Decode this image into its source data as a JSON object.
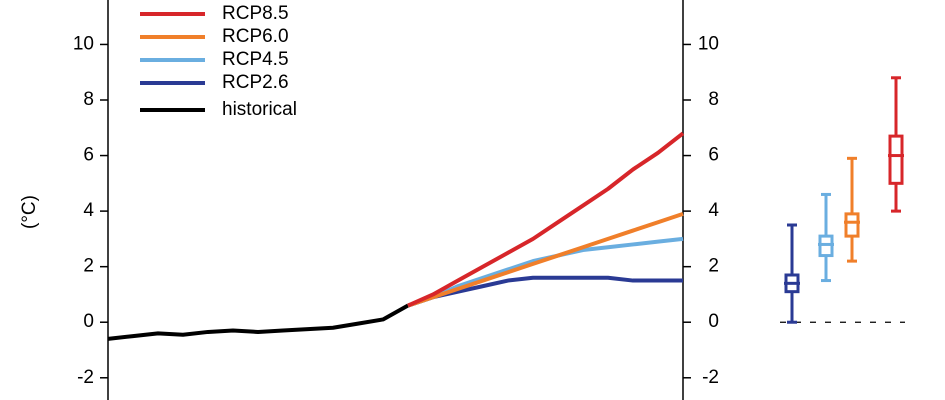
{
  "chart_data": [
    {
      "type": "line",
      "y_label": "(°C)",
      "categories": [
        null,
        null,
        null,
        null,
        null,
        null,
        null,
        null,
        null,
        null,
        null,
        null,
        null,
        null,
        null,
        null,
        null,
        null,
        null,
        null,
        null,
        null,
        null,
        null
      ],
      "ylim": [
        -2.8,
        11.6
      ],
      "yticks": [
        -2,
        0,
        2,
        4,
        6,
        8,
        10
      ],
      "legend": "top-left",
      "series": [
        {
          "name": "RCP8.5",
          "color": "#d7262a",
          "values": [
            null,
            null,
            null,
            null,
            null,
            null,
            null,
            null,
            null,
            null,
            null,
            null,
            0.6,
            1.0,
            1.5,
            2.0,
            2.5,
            3.0,
            3.6,
            4.2,
            4.8,
            5.5,
            6.1,
            6.8
          ]
        },
        {
          "name": "RCP6.0",
          "color": "#f07f2a",
          "values": [
            null,
            null,
            null,
            null,
            null,
            null,
            null,
            null,
            null,
            null,
            null,
            null,
            0.6,
            0.9,
            1.2,
            1.5,
            1.8,
            2.1,
            2.4,
            2.7,
            3.0,
            3.3,
            3.6,
            3.9
          ]
        },
        {
          "name": "RCP4.5",
          "color": "#6aaee0",
          "values": [
            null,
            null,
            null,
            null,
            null,
            null,
            null,
            null,
            null,
            null,
            null,
            null,
            0.6,
            0.9,
            1.3,
            1.6,
            1.9,
            2.2,
            2.4,
            2.6,
            2.7,
            2.8,
            2.9,
            3.0
          ]
        },
        {
          "name": "RCP2.6",
          "color": "#2a3a94",
          "values": [
            null,
            null,
            null,
            null,
            null,
            null,
            null,
            null,
            null,
            null,
            null,
            null,
            0.6,
            0.9,
            1.1,
            1.3,
            1.5,
            1.6,
            1.6,
            1.6,
            1.6,
            1.5,
            1.5,
            1.5
          ]
        },
        {
          "name": "historical",
          "color": "#000000",
          "values": [
            -0.6,
            -0.5,
            -0.4,
            -0.45,
            -0.35,
            -0.3,
            -0.35,
            -0.3,
            -0.25,
            -0.2,
            -0.05,
            0.1,
            0.6,
            null,
            null,
            null,
            null,
            null,
            null,
            null,
            null,
            null,
            null,
            null
          ]
        }
      ]
    },
    {
      "type": "box",
      "ylim": [
        -2.8,
        11.6
      ],
      "yticks": [
        -2,
        0,
        2,
        4,
        6,
        8,
        10
      ],
      "refline": 0,
      "boxes": [
        {
          "color": "#2a3a94",
          "whisker": [
            0.0,
            3.5
          ],
          "box": [
            1.1,
            1.7
          ],
          "median": 1.4
        },
        {
          "color": "#6aaee0",
          "whisker": [
            1.5,
            4.6
          ],
          "box": [
            2.4,
            3.1
          ],
          "median": 2.8
        },
        {
          "color": "#f07f2a",
          "whisker": [
            2.2,
            5.9
          ],
          "box": [
            3.1,
            3.9
          ],
          "median": 3.6
        },
        {
          "color": "#d7262a",
          "whisker": [
            4.0,
            8.8
          ],
          "box": [
            5.0,
            6.7
          ],
          "median": 6.0
        }
      ]
    }
  ]
}
